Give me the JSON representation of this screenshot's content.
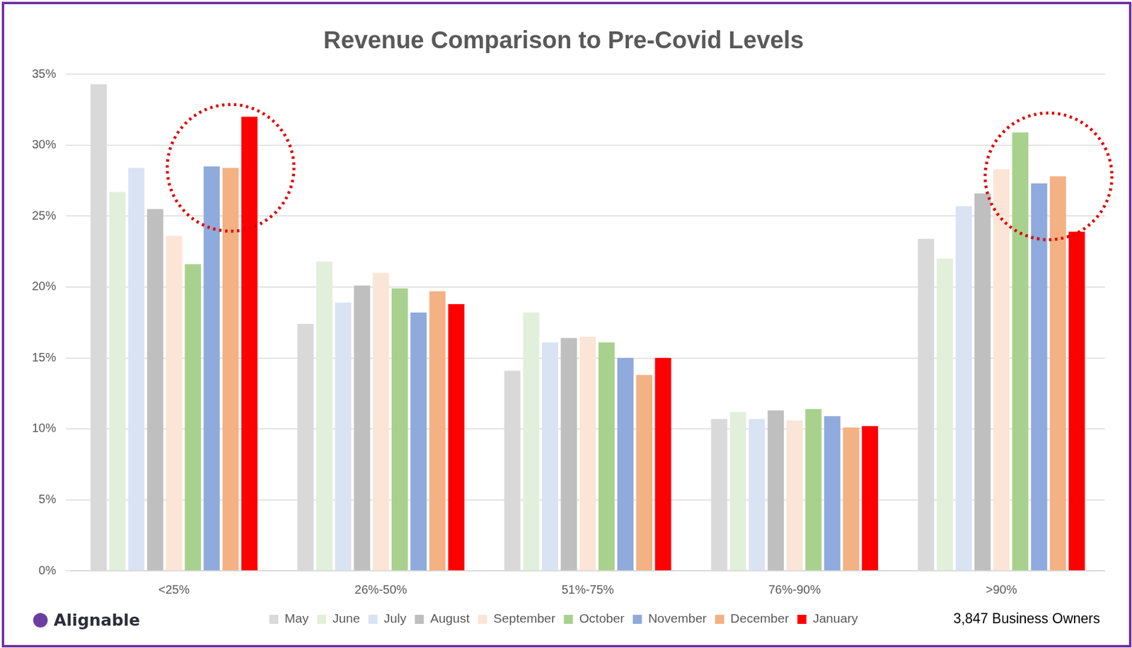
{
  "chart_data": {
    "type": "bar",
    "title": "Revenue Comparison to Pre-Covid Levels",
    "categories": [
      "<25%",
      "26%-50%",
      "51%-75%",
      "76%-90%",
      ">90%"
    ],
    "series": [
      {
        "name": "May",
        "color": "#d9d9d9",
        "values": [
          34.3,
          17.4,
          14.1,
          10.7,
          23.4
        ]
      },
      {
        "name": "June",
        "color": "#e2efda",
        "values": [
          26.7,
          21.8,
          18.2,
          11.2,
          22.0
        ]
      },
      {
        "name": "July",
        "color": "#dae3f3",
        "values": [
          28.4,
          18.9,
          16.1,
          10.7,
          25.7
        ]
      },
      {
        "name": "August",
        "color": "#bfbfbf",
        "values": [
          25.5,
          20.1,
          16.4,
          11.3,
          26.6
        ]
      },
      {
        "name": "September",
        "color": "#fbe5d6",
        "values": [
          23.6,
          21.0,
          16.5,
          10.6,
          28.3
        ]
      },
      {
        "name": "October",
        "color": "#a9d18e",
        "values": [
          21.6,
          19.9,
          16.1,
          11.4,
          30.9
        ]
      },
      {
        "name": "November",
        "color": "#8faadc",
        "values": [
          28.5,
          18.2,
          15.0,
          10.9,
          27.3
        ]
      },
      {
        "name": "December",
        "color": "#f4b183",
        "values": [
          28.4,
          19.7,
          13.8,
          10.1,
          27.8
        ]
      },
      {
        "name": "January",
        "color": "#ff0000",
        "values": [
          32.0,
          18.8,
          15.0,
          10.2,
          23.9
        ]
      }
    ],
    "ylim": [
      0,
      35
    ],
    "yticks": [
      {
        "value": 0,
        "label": "0%"
      },
      {
        "value": 5,
        "label": "5%"
      },
      {
        "value": 10,
        "label": "10%"
      },
      {
        "value": 15,
        "label": "15%"
      },
      {
        "value": 20,
        "label": "20%"
      },
      {
        "value": 25,
        "label": "25%"
      },
      {
        "value": 30,
        "label": "30%"
      },
      {
        "value": 35,
        "label": "35%"
      }
    ],
    "grid": true,
    "legend": "bottom",
    "source": "Alignable",
    "note": "3,847 Business Owners"
  }
}
